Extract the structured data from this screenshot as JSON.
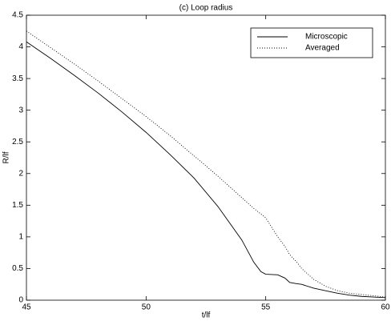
{
  "chart_data": {
    "type": "line",
    "title": "(c) Loop radius",
    "xlabel": "t/lf",
    "ylabel": "R/lf",
    "x": [
      45,
      46,
      47,
      48,
      49,
      50,
      51,
      52,
      53,
      54,
      54.5,
      54.8,
      55,
      55.5,
      55.8,
      56,
      56.3,
      56.5,
      57,
      57.5,
      58,
      58.5,
      59,
      59.5,
      60
    ],
    "series": [
      {
        "name": "Microscopic",
        "color": "#000000",
        "dash": "solid",
        "values": [
          4.08,
          3.82,
          3.55,
          3.27,
          2.97,
          2.65,
          2.3,
          1.93,
          1.48,
          0.95,
          0.6,
          0.45,
          0.41,
          0.4,
          0.35,
          0.28,
          0.26,
          0.25,
          0.19,
          0.15,
          0.11,
          0.08,
          0.06,
          0.05,
          0.04
        ]
      },
      {
        "name": "Averaged",
        "color": "#000000",
        "dash": "dotted",
        "values": [
          4.25,
          3.99,
          3.73,
          3.46,
          3.18,
          2.9,
          2.6,
          2.28,
          1.96,
          1.62,
          1.45,
          1.36,
          1.3,
          1.0,
          0.85,
          0.72,
          0.6,
          0.5,
          0.33,
          0.22,
          0.15,
          0.11,
          0.09,
          0.07,
          0.05
        ]
      }
    ],
    "xlim": [
      45,
      60
    ],
    "xticks": [
      45,
      50,
      55,
      60
    ],
    "ylim": [
      0,
      4.5
    ],
    "yticks": [
      0,
      0.5,
      1,
      1.5,
      2,
      2.5,
      3,
      3.5,
      4,
      4.5
    ],
    "grid": false,
    "legend": "upper right"
  }
}
